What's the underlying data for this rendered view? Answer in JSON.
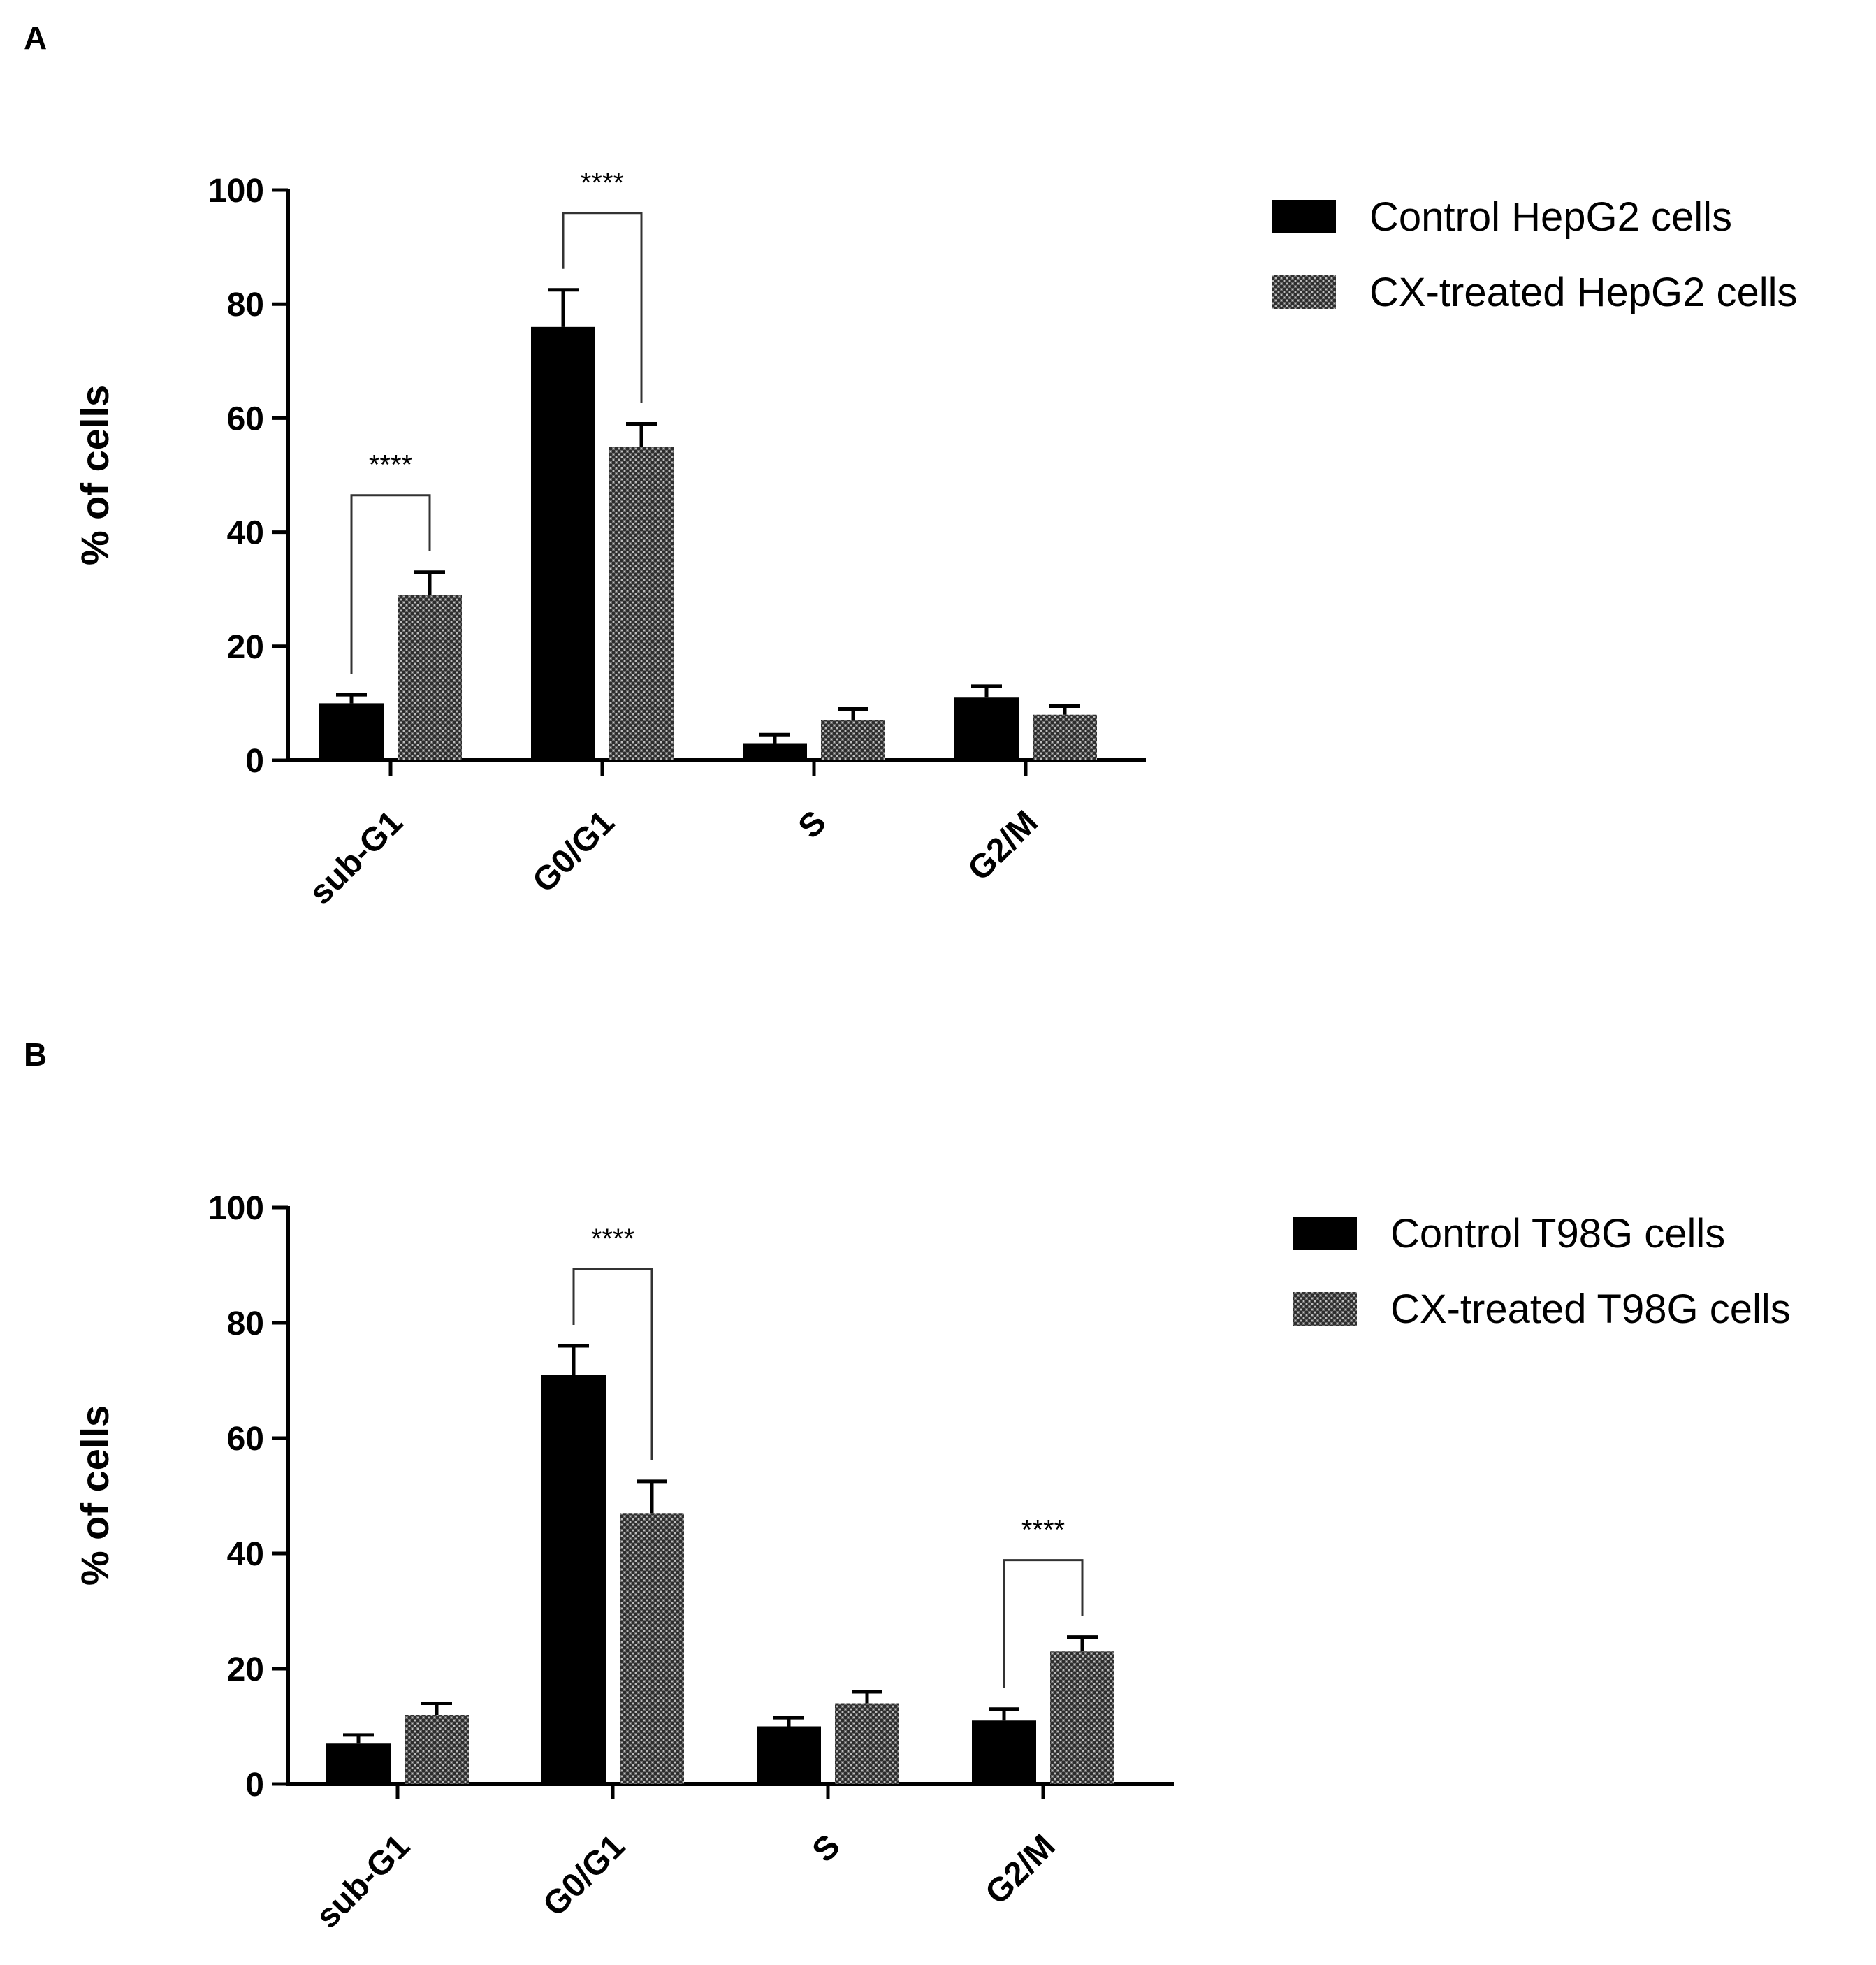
{
  "chart_data": [
    {
      "panel": "A",
      "type": "bar",
      "title": "",
      "ylabel": "% of cells",
      "xlabel": "",
      "ylim": [
        0,
        100
      ],
      "yticks": [
        0,
        20,
        40,
        60,
        80,
        100
      ],
      "categories": [
        "sub-G1",
        "G0/G1",
        "S",
        "G2/M"
      ],
      "series": [
        {
          "name": "Control HepG2 cells",
          "values": [
            10,
            76,
            3,
            11
          ],
          "errors": [
            1.5,
            6.5,
            1.5,
            2
          ]
        },
        {
          "name": "CX-treated HepG2 cells",
          "values": [
            29,
            55,
            7,
            8
          ],
          "errors": [
            4,
            4,
            2,
            1.5
          ]
        }
      ],
      "significance": [
        {
          "category": "sub-G1",
          "label": "****"
        },
        {
          "category": "G0/G1",
          "label": "****"
        }
      ],
      "legend_position": "top-right"
    },
    {
      "panel": "B",
      "type": "bar",
      "title": "",
      "ylabel": "% of cells",
      "xlabel": "",
      "ylim": [
        0,
        100
      ],
      "yticks": [
        0,
        20,
        40,
        60,
        80,
        100
      ],
      "categories": [
        "sub-G1",
        "G0/G1",
        "S",
        "G2/M"
      ],
      "series": [
        {
          "name": "Control T98G cells",
          "values": [
            7,
            71,
            10,
            11
          ],
          "errors": [
            1.5,
            5,
            1.5,
            2
          ]
        },
        {
          "name": "CX-treated T98G cells",
          "values": [
            12,
            47,
            14,
            23
          ],
          "errors": [
            2,
            5.5,
            2,
            2.5
          ]
        }
      ],
      "significance": [
        {
          "category": "G0/G1",
          "label": "****"
        },
        {
          "category": "G2/M",
          "label": "****"
        }
      ],
      "legend_position": "top-right"
    }
  ],
  "colors": {
    "control": "#000000",
    "treated": "#555555",
    "axis": "#000000"
  }
}
